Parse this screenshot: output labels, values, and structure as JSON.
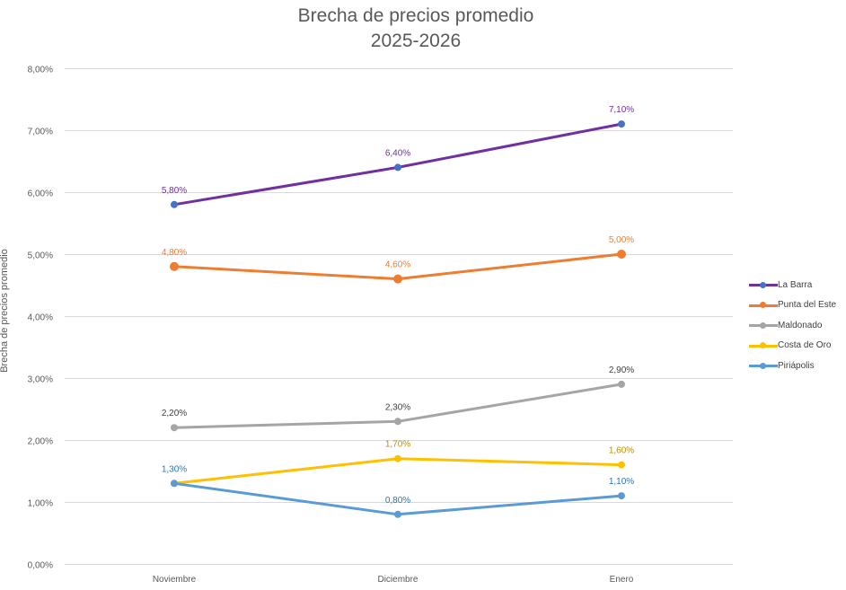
{
  "chart_data": {
    "type": "line",
    "title": "Brecha de precios promedio",
    "subtitle": "2025-2026",
    "xlabel": "",
    "ylabel": "Brecha de precios promedio",
    "categories": [
      "Noviembre",
      "Diciembre",
      "Enero"
    ],
    "ylim": [
      0,
      8
    ],
    "yticks": [
      0,
      1,
      2,
      3,
      4,
      5,
      6,
      7,
      8
    ],
    "ytick_labels": [
      "0,00%",
      "1,00%",
      "2,00%",
      "3,00%",
      "4,00%",
      "5,00%",
      "6,00%",
      "7,00%",
      "8,00%"
    ],
    "grid": true,
    "legend_position": "right",
    "series": [
      {
        "name": "La Barra",
        "color": "#7030A0",
        "marker_color": "#4472C4",
        "values": [
          5.8,
          6.4,
          7.1
        ],
        "labels": [
          "5,80%",
          "6,40%",
          "7,10%"
        ],
        "label_color": "#7030A0"
      },
      {
        "name": "Punta del Este",
        "color": "#ED7D31",
        "marker_color": "#ED7D31",
        "values": [
          4.8,
          4.6,
          5.0
        ],
        "labels": [
          "4,80%",
          "4,60%",
          "5,00%"
        ],
        "label_color": "#ED7D31"
      },
      {
        "name": "Maldonado",
        "color": "#A5A5A5",
        "marker_color": "#A5A5A5",
        "values": [
          2.2,
          2.3,
          2.9
        ],
        "labels": [
          "2,20%",
          "2,30%",
          "2,90%"
        ],
        "label_color": "#404040"
      },
      {
        "name": "Costa de Oro",
        "color": "#FFC000",
        "marker_color": "#FFC000",
        "values": [
          1.3,
          1.7,
          1.6
        ],
        "labels": [
          "",
          "1,70%",
          "1,60%"
        ],
        "label_color": "#BF9000"
      },
      {
        "name": "Piriápolis",
        "color": "#5B9BD5",
        "marker_color": "#5B9BD5",
        "values": [
          1.3,
          0.8,
          1.1
        ],
        "labels": [
          "1,30%",
          "0,80%",
          "1,10%"
        ],
        "label_color": "#2E75B6"
      }
    ]
  }
}
